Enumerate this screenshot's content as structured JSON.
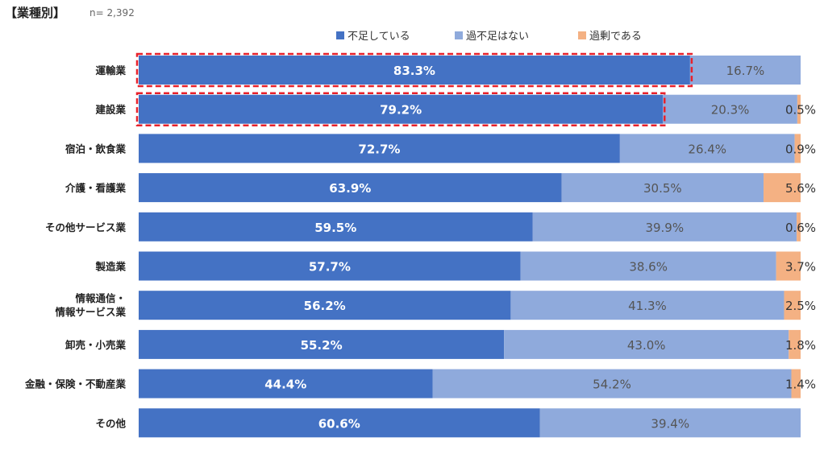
{
  "header": {
    "title": "【業種別】",
    "n_label": "n= 2,392"
  },
  "chart_data": {
    "type": "bar",
    "orientation": "horizontal",
    "stacked": true,
    "percent_stacked": true,
    "legend_position": "top",
    "categories": [
      "運輸業",
      "建設業",
      "宿泊・飲食業",
      "介護・看護業",
      "その他サービス業",
      "製造業",
      "情報通信・\n情報サービス業",
      "卸売・小売業",
      "金融・保険・不動産業",
      "その他"
    ],
    "series": [
      {
        "name": "不足している",
        "color": "#4472c4",
        "values": [
          83.3,
          79.2,
          72.7,
          63.9,
          59.5,
          57.7,
          56.2,
          55.2,
          44.4,
          60.6
        ],
        "labels": [
          "83.3%",
          "79.2%",
          "72.7%",
          "63.9%",
          "59.5%",
          "57.7%",
          "56.2%",
          "55.2%",
          "44.4%",
          "60.6%"
        ]
      },
      {
        "name": "過不足はない",
        "color": "#8faadc",
        "values": [
          16.7,
          20.3,
          26.4,
          30.5,
          39.9,
          38.6,
          41.3,
          43.0,
          54.2,
          39.4
        ],
        "labels": [
          "16.7%",
          "20.3%",
          "26.4%",
          "30.5%",
          "39.9%",
          "38.6%",
          "41.3%",
          "43.0%",
          "54.2%",
          "39.4%"
        ]
      },
      {
        "name": "過剰である",
        "color": "#f4b183",
        "values": [
          0,
          0.5,
          0.9,
          5.6,
          0.6,
          3.7,
          2.5,
          1.8,
          1.4,
          0
        ],
        "labels": [
          "",
          "0.5%",
          "0.9%",
          "5.6%",
          "0.6%",
          "3.7%",
          "2.5%",
          "1.8%",
          "1.4%",
          ""
        ]
      }
    ],
    "highlighted_categories": [
      "運輸業",
      "建設業"
    ],
    "highlight_color": "#e8212b",
    "xlim": [
      0,
      100
    ],
    "grid": false
  }
}
